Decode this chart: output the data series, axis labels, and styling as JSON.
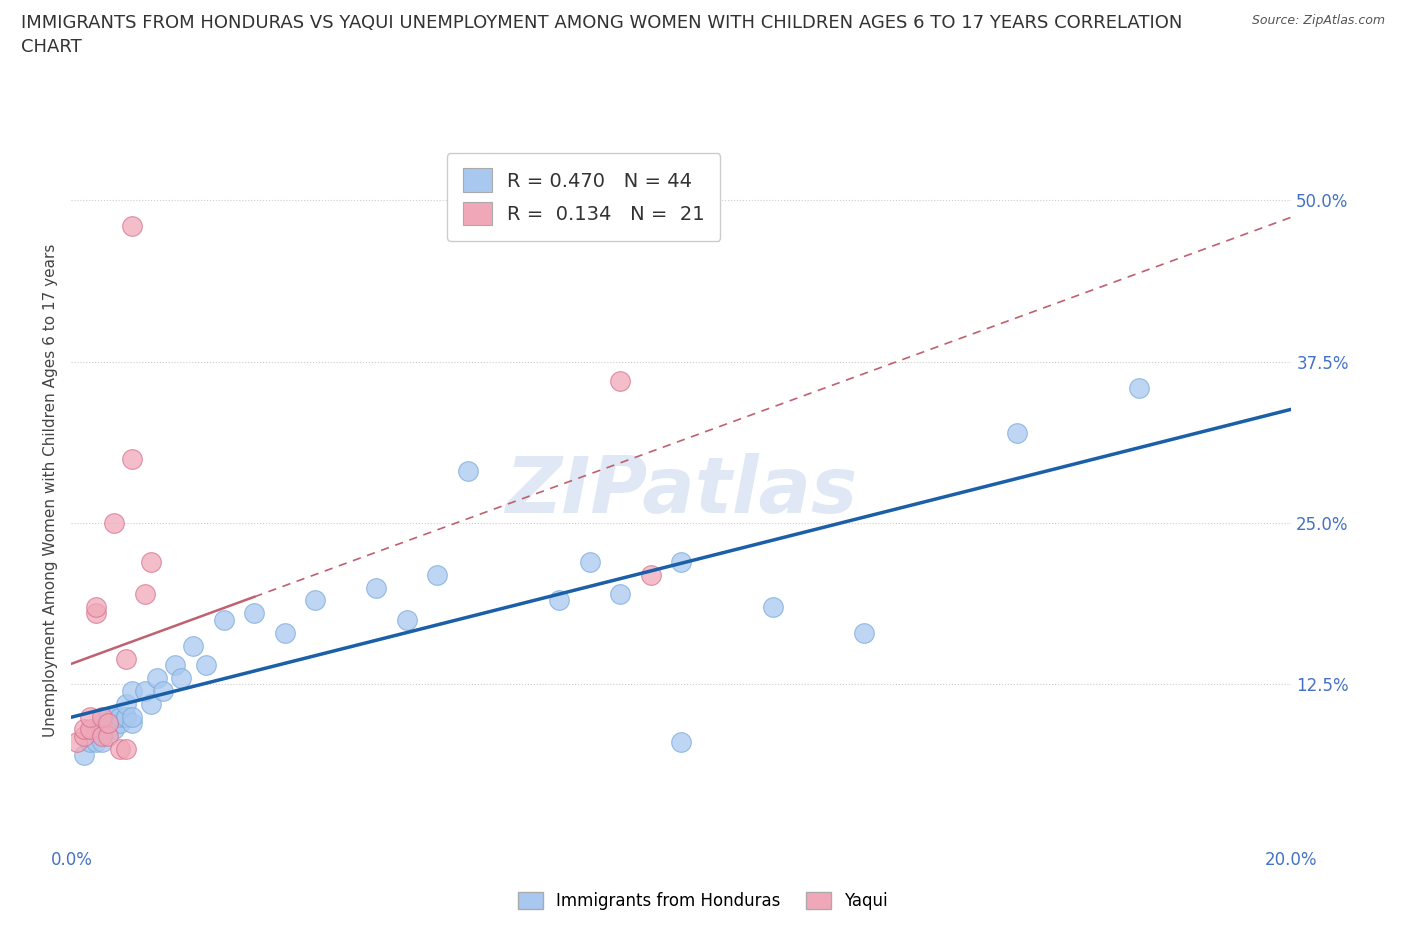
{
  "title": "IMMIGRANTS FROM HONDURAS VS YAQUI UNEMPLOYMENT AMONG WOMEN WITH CHILDREN AGES 6 TO 17 YEARS CORRELATION\nCHART",
  "source": "Source: ZipAtlas.com",
  "ylabel": "Unemployment Among Women with Children Ages 6 to 17 years",
  "xlim": [
    0.0,
    0.2
  ],
  "ylim": [
    0.0,
    0.55
  ],
  "yticks": [
    0.125,
    0.25,
    0.375,
    0.5
  ],
  "yticklabels": [
    "12.5%",
    "25.0%",
    "37.5%",
    "50.0%"
  ],
  "xticks": [
    0.0,
    0.05,
    0.1,
    0.15,
    0.2
  ],
  "xticklabels": [
    "0.0%",
    "",
    "",
    "",
    "20.0%"
  ],
  "blue_color": "#A8C8F0",
  "blue_edge_color": "#7AAAD8",
  "pink_color": "#F0A8B8",
  "pink_edge_color": "#D87090",
  "blue_line_color": "#1A5FA8",
  "pink_line_color": "#C06070",
  "tick_label_color": "#4472C4",
  "legend_label1": "R = 0.470   N = 44",
  "legend_label2": "R =  0.134   N =  21",
  "watermark": "ZIPatlas",
  "blue_scatter_x": [
    0.002,
    0.003,
    0.004,
    0.004,
    0.005,
    0.005,
    0.005,
    0.006,
    0.006,
    0.007,
    0.007,
    0.008,
    0.008,
    0.009,
    0.009,
    0.009,
    0.01,
    0.01,
    0.01,
    0.012,
    0.013,
    0.014,
    0.015,
    0.017,
    0.018,
    0.02,
    0.022,
    0.025,
    0.03,
    0.035,
    0.04,
    0.05,
    0.055,
    0.06,
    0.065,
    0.08,
    0.085,
    0.09,
    0.1,
    0.1,
    0.115,
    0.13,
    0.155,
    0.175
  ],
  "blue_scatter_y": [
    0.07,
    0.08,
    0.08,
    0.09,
    0.08,
    0.09,
    0.095,
    0.09,
    0.1,
    0.09,
    0.1,
    0.095,
    0.1,
    0.1,
    0.1,
    0.11,
    0.095,
    0.1,
    0.12,
    0.12,
    0.11,
    0.13,
    0.12,
    0.14,
    0.13,
    0.155,
    0.14,
    0.175,
    0.18,
    0.165,
    0.19,
    0.2,
    0.175,
    0.21,
    0.29,
    0.19,
    0.22,
    0.195,
    0.22,
    0.08,
    0.185,
    0.165,
    0.32,
    0.355
  ],
  "pink_scatter_x": [
    0.001,
    0.002,
    0.002,
    0.003,
    0.003,
    0.004,
    0.004,
    0.005,
    0.005,
    0.006,
    0.006,
    0.007,
    0.008,
    0.009,
    0.009,
    0.01,
    0.01,
    0.012,
    0.013,
    0.09,
    0.095
  ],
  "pink_scatter_y": [
    0.08,
    0.085,
    0.09,
    0.09,
    0.1,
    0.18,
    0.185,
    0.085,
    0.1,
    0.085,
    0.095,
    0.25,
    0.075,
    0.075,
    0.145,
    0.3,
    0.48,
    0.195,
    0.22,
    0.36,
    0.21
  ],
  "background_color": "#ffffff",
  "grid_color": "#cccccc"
}
